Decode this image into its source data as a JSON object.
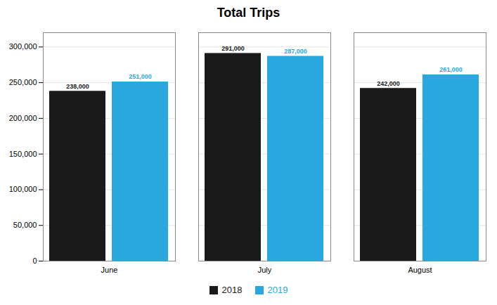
{
  "chart_data": {
    "type": "bar",
    "title": "Total Trips",
    "categories": [
      "June",
      "July",
      "August"
    ],
    "series": [
      {
        "name": "2018",
        "color": "#1a1a1a",
        "values": [
          238000,
          291000,
          242000
        ],
        "value_labels": [
          "238,000",
          "291,000",
          "242,000"
        ]
      },
      {
        "name": "2019",
        "color": "#29a8e0",
        "values": [
          251000,
          287000,
          261000
        ],
        "value_labels": [
          "251,000",
          "287,000",
          "261,000"
        ]
      }
    ],
    "ylim": [
      0,
      320000
    ],
    "yticks": [
      0,
      {
        "value": 50000,
        "label": "50,000"
      },
      {
        "value": 100000,
        "label": "100,000"
      },
      {
        "value": 150000,
        "label": "150,000"
      },
      {
        "value": 200000,
        "label": "200,000"
      },
      {
        "value": 250000,
        "label": "250,000"
      },
      {
        "value": 300000,
        "label": "300,000"
      }
    ],
    "grid": true,
    "data_labels": true,
    "legend": "bottom"
  }
}
